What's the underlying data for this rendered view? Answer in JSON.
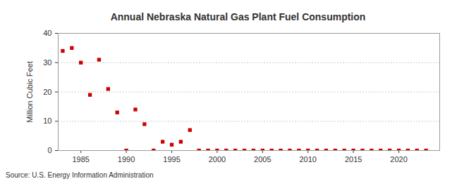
{
  "chart_data": {
    "type": "scatter",
    "title": "Annual Nebraska Natural Gas Plant Fuel Consumption",
    "y_label": "Million Cubic Feet",
    "source": "Source: U.S. Energy Information Administration",
    "x": [
      1983,
      1984,
      1985,
      1986,
      1987,
      1988,
      1989,
      1990,
      1991,
      1992,
      1993,
      1994,
      1995,
      1996,
      1997,
      1998,
      1999,
      2000,
      2001,
      2002,
      2003,
      2004,
      2005,
      2006,
      2007,
      2008,
      2009,
      2010,
      2011,
      2012,
      2013,
      2014,
      2015,
      2016,
      2017,
      2018,
      2019,
      2020,
      2021,
      2022,
      2023
    ],
    "values": [
      34,
      35,
      30,
      19,
      31,
      21,
      13,
      0,
      14,
      9,
      0,
      3,
      2,
      3,
      7,
      0,
      0,
      0,
      0,
      0,
      0,
      0,
      0,
      0,
      0,
      0,
      0,
      0,
      0,
      0,
      0,
      0,
      0,
      0,
      0,
      0,
      0,
      0,
      0,
      0,
      0
    ],
    "color": "#cc0000",
    "marker": "square",
    "xlim": [
      1982.5,
      2024.5
    ],
    "xticks": [
      1985,
      1990,
      1995,
      2000,
      2005,
      2010,
      2015,
      2020
    ],
    "ylim": [
      0,
      40
    ],
    "yticks": [
      0,
      10,
      20,
      30,
      40
    ],
    "grid": true
  }
}
